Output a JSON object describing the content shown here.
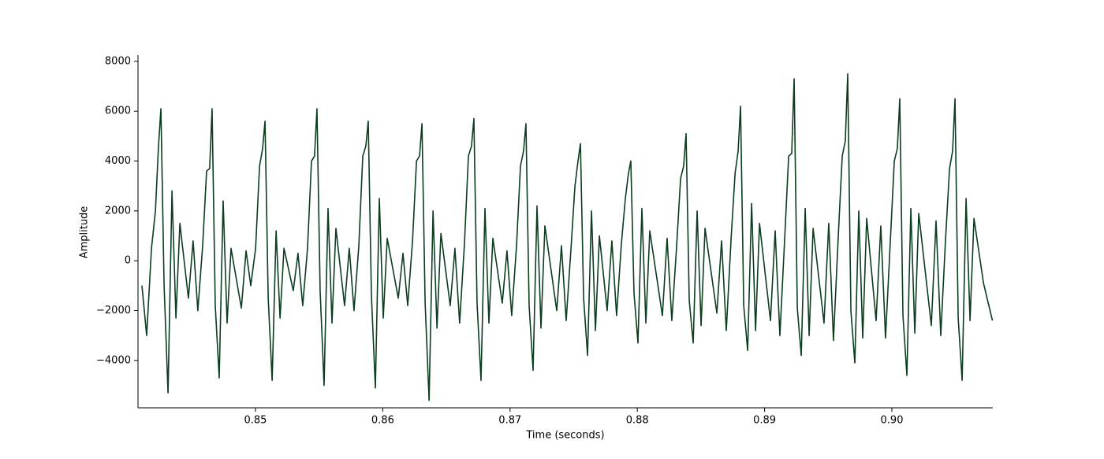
{
  "chart_data": {
    "type": "line",
    "xlabel": "Time (seconds)",
    "ylabel": "Amplitude",
    "color": "#0b3d1e",
    "xlim": [
      0.84077,
      0.90793
    ],
    "ylim": [
      -5900,
      8250
    ],
    "xticks": [
      0.85,
      0.86,
      0.87,
      0.88,
      0.89,
      {
        "value": 0.9,
        "label": "0.90"
      }
    ],
    "yticks": [
      {
        "value": -4000,
        "label": "−4000"
      },
      {
        "value": -2000,
        "label": "−2000"
      },
      0,
      2000,
      4000,
      6000,
      8000
    ],
    "x": [
      0.84108,
      0.84145,
      0.84183,
      0.84214,
      0.84238,
      0.84257,
      0.84282,
      0.84313,
      0.84344,
      0.84375,
      0.84406,
      0.84473,
      0.8451,
      0.84547,
      0.84585,
      0.84616,
      0.8464,
      0.84659,
      0.84684,
      0.84715,
      0.84746,
      0.84777,
      0.84808,
      0.84889,
      0.84926,
      0.84963,
      0.85001,
      0.85032,
      0.85056,
      0.85075,
      0.851,
      0.85131,
      0.85162,
      0.85193,
      0.85224,
      0.85297,
      0.85334,
      0.85371,
      0.85409,
      0.8544,
      0.85464,
      0.85483,
      0.85508,
      0.85539,
      0.8557,
      0.85601,
      0.85632,
      0.857,
      0.85737,
      0.85774,
      0.85812,
      0.85843,
      0.85867,
      0.85886,
      0.85911,
      0.85942,
      0.85973,
      0.86004,
      0.86035,
      0.86122,
      0.86159,
      0.86196,
      0.86234,
      0.86265,
      0.86289,
      0.86308,
      0.86333,
      0.86364,
      0.86395,
      0.86426,
      0.86457,
      0.8653,
      0.86567,
      0.86604,
      0.86642,
      0.86673,
      0.86697,
      0.86716,
      0.86741,
      0.86772,
      0.86803,
      0.86834,
      0.86865,
      0.86939,
      0.86976,
      0.87013,
      0.87051,
      0.87082,
      0.87106,
      0.87125,
      0.8715,
      0.87181,
      0.87212,
      0.87243,
      0.87274,
      0.87367,
      0.87404,
      0.87441,
      0.87479,
      0.8751,
      0.87534,
      0.87553,
      0.87578,
      0.87609,
      0.8764,
      0.87671,
      0.87702,
      0.87763,
      0.878,
      0.87837,
      0.87875,
      0.87906,
      0.8793,
      0.87949,
      0.87974,
      0.88005,
      0.88036,
      0.88067,
      0.88098,
      0.88197,
      0.88234,
      0.88271,
      0.88309,
      0.8834,
      0.88364,
      0.88383,
      0.88408,
      0.88439,
      0.8847,
      0.88501,
      0.88532,
      0.88625,
      0.88662,
      0.88699,
      0.88737,
      0.88768,
      0.88792,
      0.88811,
      0.88836,
      0.88867,
      0.88898,
      0.88929,
      0.8896,
      0.89046,
      0.89083,
      0.8912,
      0.89158,
      0.89189,
      0.89213,
      0.89232,
      0.89257,
      0.89288,
      0.89319,
      0.8935,
      0.89381,
      0.89467,
      0.89504,
      0.89541,
      0.89579,
      0.8961,
      0.89634,
      0.89653,
      0.89678,
      0.89709,
      0.8974,
      0.89771,
      0.89802,
      0.89876,
      0.89913,
      0.8995,
      0.89988,
      0.90019,
      0.90043,
      0.90062,
      0.90087,
      0.90118,
      0.90149,
      0.9018,
      0.90211,
      0.9031,
      0.90347,
      0.90384,
      0.90422,
      0.90453,
      0.90477,
      0.90496,
      0.90521,
      0.90552,
      0.90583,
      0.90614,
      0.90645,
      0.9072,
      0.9079
    ],
    "values": [
      -1000,
      -3000,
      500,
      2000,
      4600,
      6100,
      -1000,
      -5300,
      2800,
      -2300,
      1500,
      -1500,
      800,
      -2000,
      600,
      3600,
      3700,
      6100,
      -1800,
      -4700,
      2400,
      -2500,
      500,
      -1900,
      400,
      -1000,
      500,
      3800,
      4500,
      5600,
      -1500,
      -4800,
      1200,
      -2300,
      500,
      -1200,
      300,
      -1800,
      500,
      4000,
      4200,
      6100,
      -1200,
      -5000,
      2100,
      -2500,
      1300,
      -1800,
      500,
      -2000,
      600,
      4200,
      4600,
      5600,
      -1400,
      -5100,
      2500,
      -2300,
      900,
      -1500,
      300,
      -1800,
      800,
      4000,
      4200,
      5500,
      -1700,
      -5600,
      2000,
      -2700,
      1100,
      -1800,
      500,
      -2500,
      700,
      4200,
      4600,
      5700,
      -1700,
      -4800,
      2100,
      -2500,
      900,
      -1700,
      400,
      -2200,
      600,
      3800,
      4400,
      5500,
      -1800,
      -4400,
      2200,
      -2700,
      1400,
      -2000,
      600,
      -2400,
      500,
      3000,
      4000,
      4700,
      -1500,
      -3800,
      2000,
      -2800,
      1000,
      -2000,
      800,
      -2200,
      700,
      2500,
      3500,
      4000,
      -1300,
      -3300,
      2100,
      -2500,
      1200,
      -2200,
      900,
      -2400,
      600,
      3300,
      3800,
      5100,
      -1600,
      -3300,
      2000,
      -2600,
      1300,
      -2100,
      800,
      -2800,
      900,
      3500,
      4400,
      6200,
      -1800,
      -3600,
      2300,
      -2800,
      1500,
      -2400,
      1200,
      -3000,
      900,
      4200,
      4300,
      7300,
      -1900,
      -3800,
      2100,
      -3000,
      1300,
      -2500,
      1500,
      -3200,
      1000,
      4200,
      4800,
      7500,
      -2000,
      -4100,
      2000,
      -3100,
      1700,
      -2400,
      1400,
      -3100,
      800,
      4000,
      4500,
      6500,
      -2200,
      -4600,
      2100,
      -2900,
      1900,
      -2600,
      1600,
      -3000,
      900,
      3700,
      4400,
      6500,
      -2300,
      -4800,
      2500,
      -2400,
      1700,
      -900,
      -2400
    ]
  }
}
